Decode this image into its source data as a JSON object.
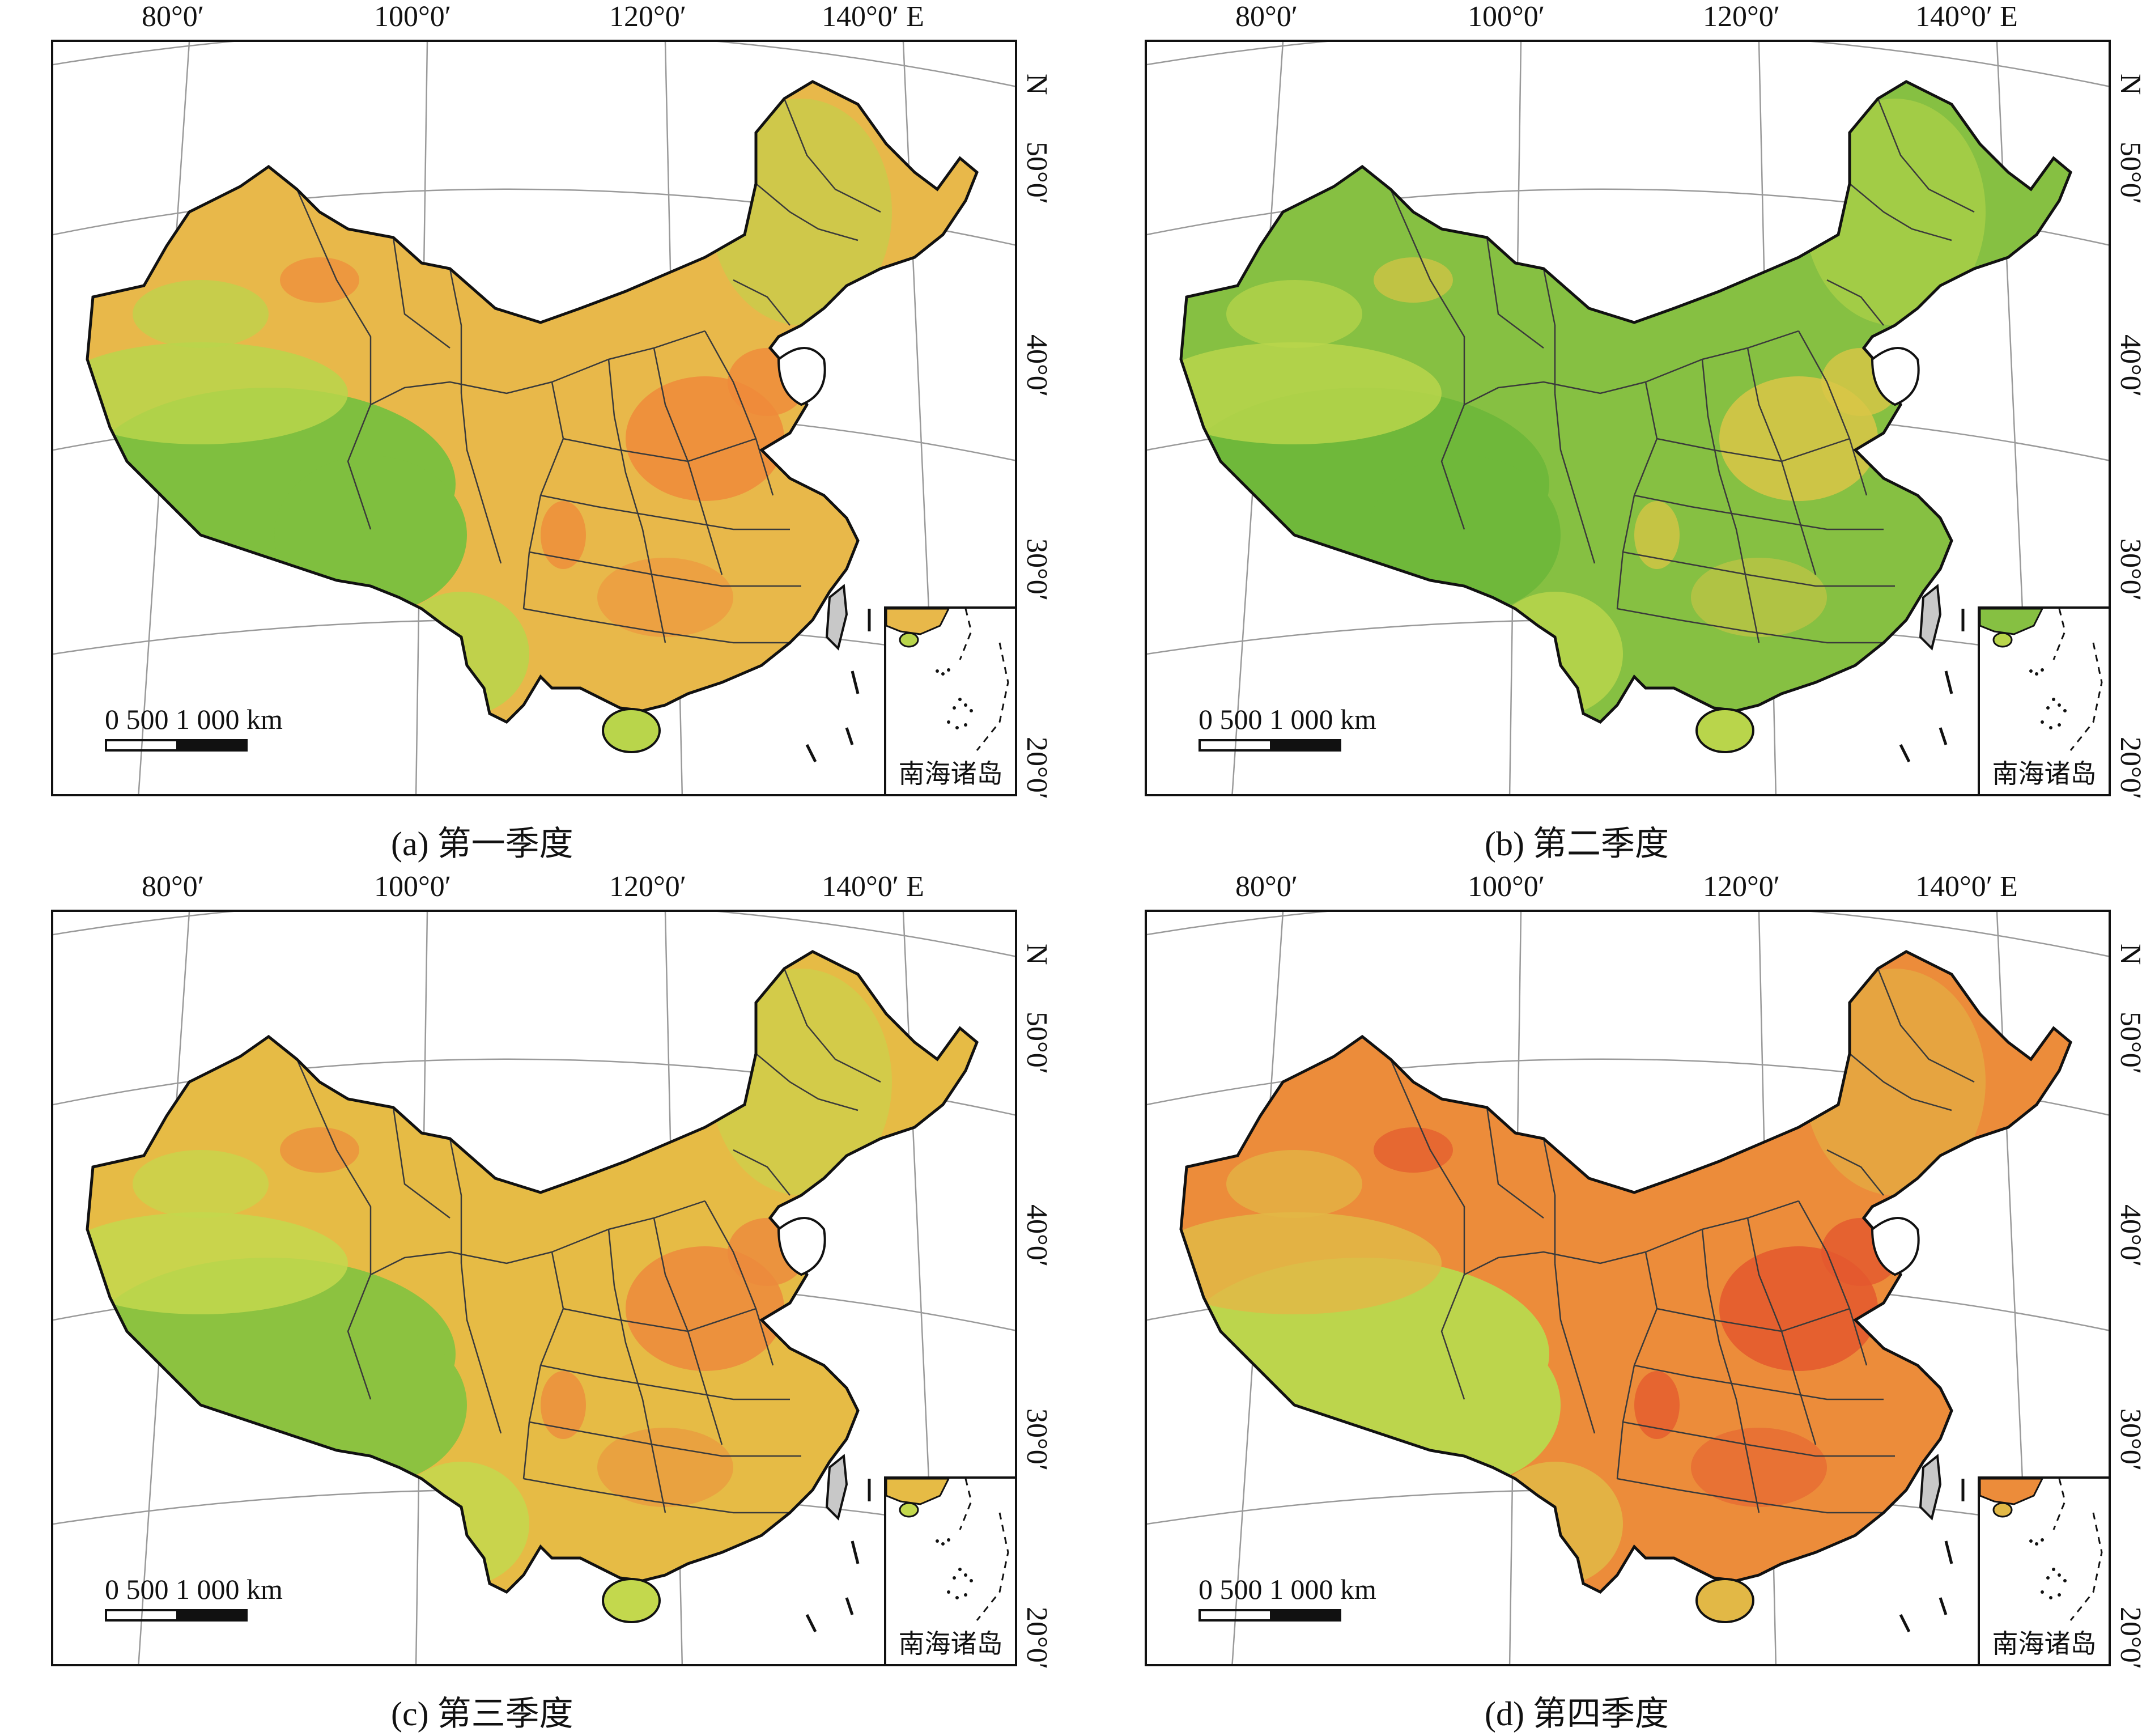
{
  "panels": [
    {
      "caption": "(a) 第一季度",
      "lon_labels": [
        "80°0′",
        "100°0′",
        "120°0′",
        "140°0′ E"
      ],
      "lat_labels": [
        "N",
        "50°0′",
        "40°0′",
        "30°0′",
        "20°0′"
      ],
      "scale": "0    500   1 000 km",
      "inset_label": "南海诸岛",
      "colors": {
        "base": "#e8b84a",
        "west": "#7fbf3f",
        "mid": "#b9d54b",
        "hot": "#ef8a3a"
      }
    },
    {
      "caption": "(b) 第二季度",
      "lon_labels": [
        "80°0′",
        "100°0′",
        "120°0′",
        "140°0′ E"
      ],
      "lat_labels": [
        "N",
        "50°0′",
        "40°0′",
        "30°0′",
        "20°0′"
      ],
      "scale": "0    500   1 000 km",
      "inset_label": "南海诸岛",
      "colors": {
        "base": "#86c042",
        "west": "#6fb83a",
        "mid": "#b9d54b",
        "hot": "#d9c546"
      }
    },
    {
      "caption": "(c) 第三季度",
      "lon_labels": [
        "80°0′",
        "100°0′",
        "120°0′",
        "140°0′ E"
      ],
      "lat_labels": [
        "N",
        "50°0′",
        "40°0′",
        "30°0′",
        "20°0′"
      ],
      "scale": "0    500   1 000 km",
      "inset_label": "南海诸岛",
      "colors": {
        "base": "#e6bb45",
        "west": "#8cc240",
        "mid": "#c3d84d",
        "hot": "#ec8a3c"
      }
    },
    {
      "caption": "(d) 第四季度",
      "lon_labels": [
        "80°0′",
        "100°0′",
        "120°0′",
        "140°0′ E"
      ],
      "lat_labels": [
        "N",
        "50°0′",
        "40°0′",
        "30°0′",
        "20°0′"
      ],
      "scale": "0    500   1 000 km",
      "inset_label": "南海诸岛",
      "colors": {
        "base": "#ec8c3a",
        "west": "#bcd54c",
        "mid": "#e2b846",
        "hot": "#e4582e"
      }
    }
  ]
}
